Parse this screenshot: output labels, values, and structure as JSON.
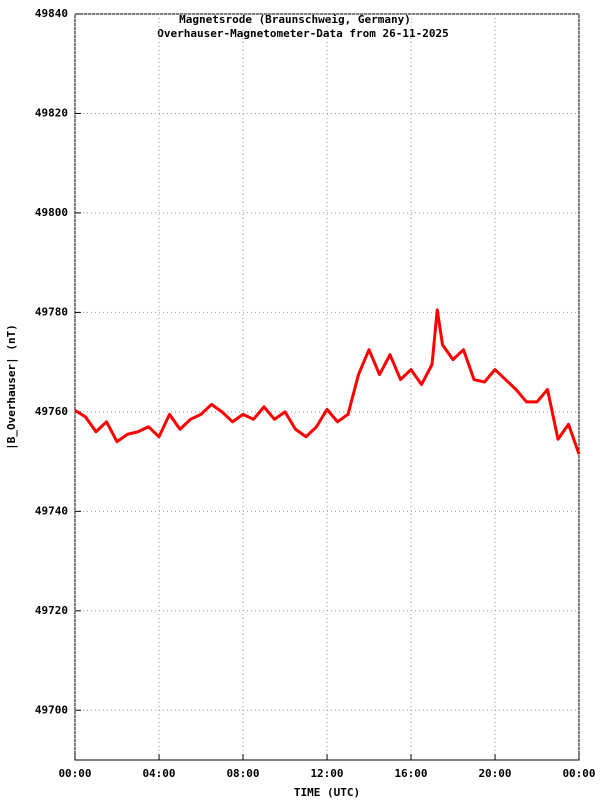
{
  "chart_data": {
    "type": "line",
    "title": "Magnetsrode (Braunschweig, Germany)",
    "subtitle": "Overhauser-Magnetometer-Data from 26-11-2025",
    "x_label": "TIME (UTC)",
    "y_label": "|B_Overhauser| (nT)",
    "xlim": [
      0,
      24
    ],
    "xticks": [
      {
        "value": 0,
        "label": "00:00"
      },
      {
        "value": 4,
        "label": "04:00"
      },
      {
        "value": 8,
        "label": "08:00"
      },
      {
        "value": 12,
        "label": "12:00"
      },
      {
        "value": 16,
        "label": "16:00"
      },
      {
        "value": 20,
        "label": "20:00"
      },
      {
        "value": 24,
        "label": "00:00"
      }
    ],
    "ylim": [
      49690,
      49840
    ],
    "yticks": [
      49700,
      49720,
      49740,
      49760,
      49780,
      49800,
      49820,
      49840
    ],
    "grid": true,
    "x": [
      0,
      0.5,
      1,
      1.5,
      2,
      2.5,
      3,
      3.5,
      4,
      4.5,
      5,
      5.5,
      6,
      6.5,
      7,
      7.5,
      8,
      8.5,
      9,
      9.5,
      10,
      10.5,
      11,
      11.5,
      12,
      12.5,
      13,
      13.5,
      14,
      14.5,
      15,
      15.5,
      16,
      16.5,
      17,
      17.25,
      17.5,
      18,
      18.5,
      19,
      19.5,
      20,
      20.5,
      21,
      21.5,
      22,
      22.5,
      23,
      23.5,
      24
    ],
    "series": [
      {
        "color": "#ff0000",
        "values": [
          49760.3,
          49759,
          49756,
          49758,
          49754,
          49755.5,
          49756,
          49757,
          49755,
          49759.5,
          49756.5,
          49758.5,
          49759.5,
          49761.5,
          49760,
          49758,
          49759.5,
          49758.5,
          49761,
          49758.5,
          49760,
          49756.5,
          49755,
          49757,
          49760.5,
          49758,
          49759.5,
          49767.5,
          49772.5,
          49767.5,
          49771.5,
          49766.5,
          49768.5,
          49765.5,
          49769.5,
          49780.5,
          49773.5,
          49770.5,
          49772.5,
          49766.5,
          49766,
          49768.5,
          49766.5,
          49764.5,
          49762,
          49762,
          49764.5,
          49754.5,
          49757.5,
          49751.5
        ]
      }
    ]
  }
}
